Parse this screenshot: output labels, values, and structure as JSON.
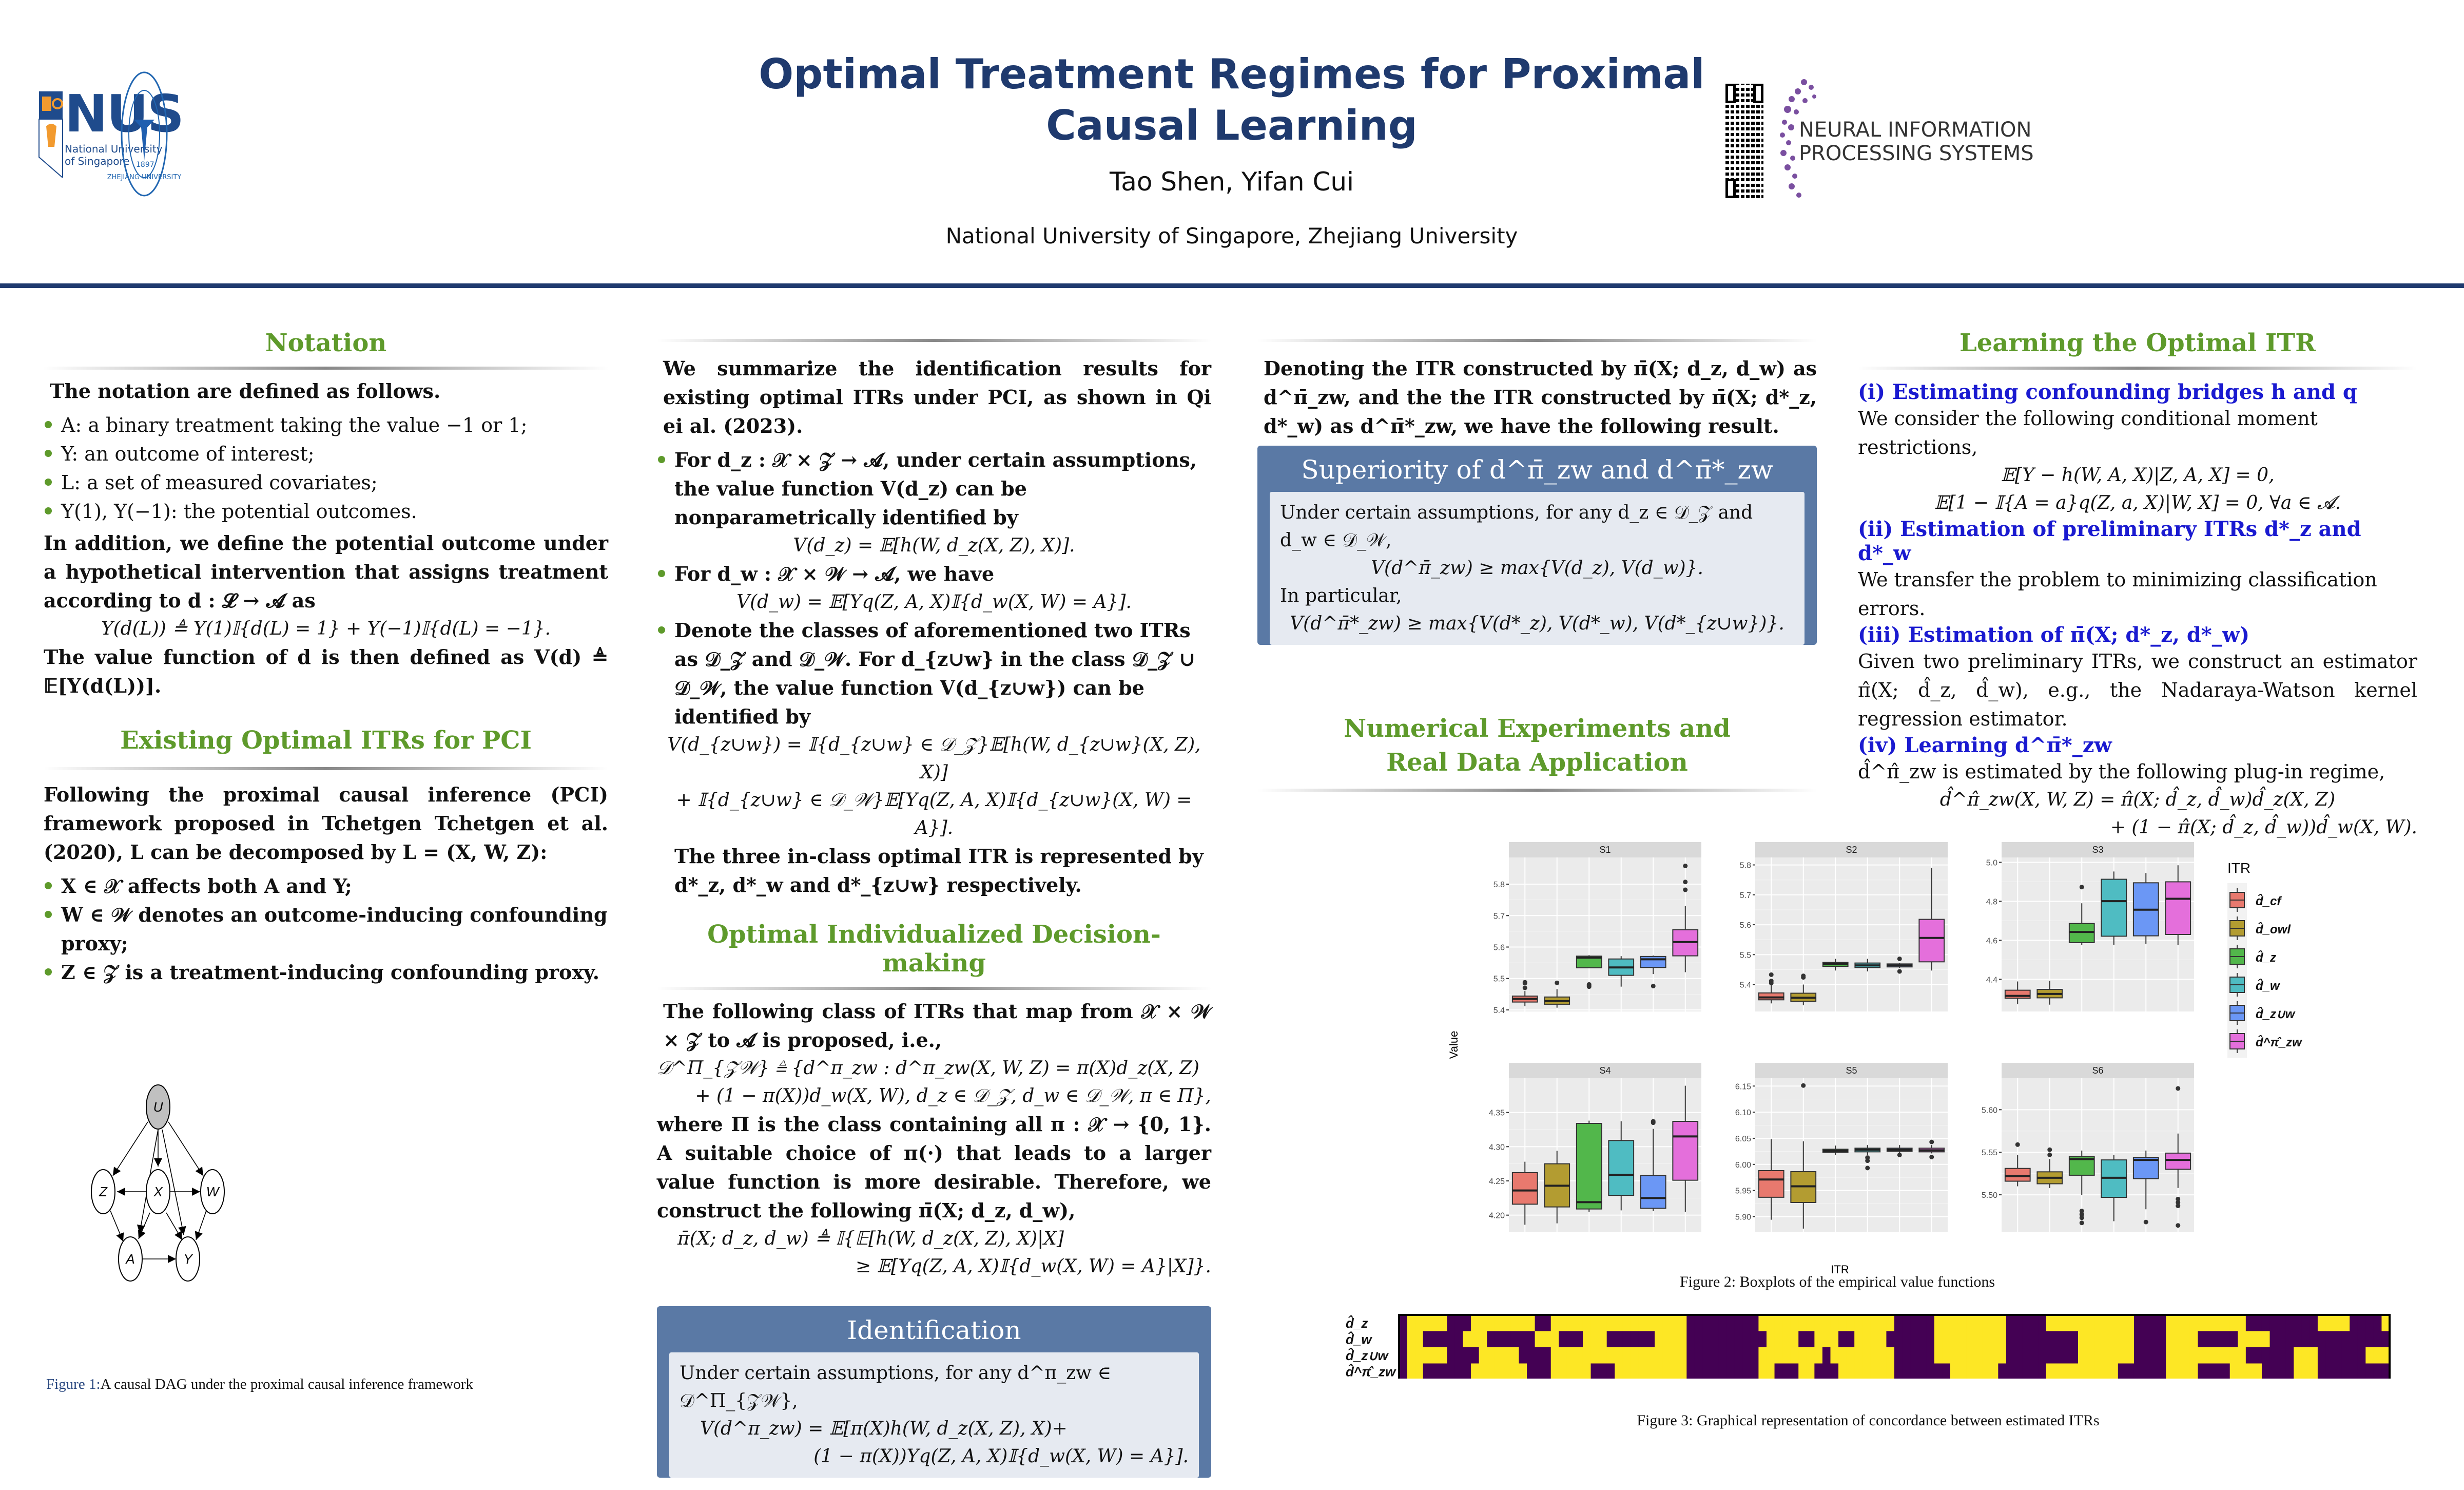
{
  "header": {
    "title_line1": "Optimal Treatment Regimes for Proximal",
    "title_line2": "Causal Learning",
    "authors": "Tao Shen, Yifan Cui",
    "affiliations": "National University of Singapore, Zhejiang University",
    "logos": {
      "nus_name": "NUS",
      "nus_sub1": "National University",
      "nus_sub2": "of Singapore",
      "zju_name": "ZHEJIANG UNIVERSITY",
      "zju_year": "1897",
      "neurips_line1": "NEURAL INFORMATION",
      "neurips_line2": "PROCESSING SYSTEMS",
      "qr_icon": "qr-code-icon"
    },
    "colors": {
      "title": "#1f3a6e",
      "section": "#5e9a2b",
      "box": "#5a79a5",
      "box_inner": "#e6eaf1",
      "subhead_blue": "#1a1ad0"
    }
  },
  "notation": {
    "title": "Notation",
    "intro": "The notation are defined as follows.",
    "bullets": [
      "A: a binary treatment taking the value −1 or 1;",
      "Y: an outcome of interest;",
      "L: a set of measured covariates;",
      "Y(1), Y(−1): the potential outcomes."
    ],
    "para1": "In addition, we define the potential outcome under a hypothetical intervention that assigns treatment according to d : 𝓛 → 𝓐 as",
    "eq1": "Y(d(L)) ≜ Y(1)𝕀{d(L) = 1} + Y(−1)𝕀{d(L) = −1}.",
    "para2": "The value function of d is then defined as V(d) ≜ 𝔼[Y(d(L))]."
  },
  "existing": {
    "title": "Existing Optimal ITRs for PCI",
    "intro": "Following the proximal causal inference (PCI) framework proposed in Tchetgen Tchetgen et al. (2020), L can be decomposed by L = (X, W, Z):",
    "bullets": [
      "X ∈ 𝒳 affects both A and Y;",
      "W ∈ 𝒲 denotes an outcome-inducing confounding proxy;",
      "Z ∈ 𝒵 is a treatment-inducing confounding proxy."
    ]
  },
  "figure1": {
    "nodes": [
      "U",
      "Z",
      "X",
      "W",
      "A",
      "Y"
    ],
    "caption_label": "Figure 1:",
    "caption_text": "A causal DAG under the proximal causal inference framework"
  },
  "col2": {
    "intro": "We summarize the identification results for existing optimal ITRs under PCI, as shown in Qi ei al. (2023).",
    "b1": "For d_z : 𝒳 × 𝒵 → 𝓐, under certain assumptions, the value function V(d_z) can be nonparametrically identified by",
    "eq_b1": "V(d_z) = 𝔼[h(W, d_z(X, Z), X)].",
    "b2": "For d_w : 𝒳 × 𝒲 → 𝓐, we have",
    "eq_b2": "V(d_w) = 𝔼[Yq(Z, A, X)𝕀{d_w(X, W) = A}].",
    "b3": "Denote the classes of aforementioned two ITRs as 𝒟_𝒵 and 𝒟_𝒲. For d_{z∪w} in the class 𝒟_𝒵 ∪ 𝒟_𝒲, the value function V(d_{z∪w}) can be identified by",
    "eq_b3_l1": "V(d_{z∪w}) = 𝕀{d_{z∪w} ∈ 𝒟_𝒵}𝔼[h(W, d_{z∪w}(X, Z), X)]",
    "eq_b3_l2": "+ 𝕀{d_{z∪w} ∈ 𝒟_𝒲}𝔼[Yq(Z, A, X)𝕀{d_{z∪w}(X, W) = A}].",
    "closing": "The three in-class optimal ITR is represented by d*_z, d*_w and d*_{z∪w} respectively."
  },
  "decision": {
    "title": "Optimal Individualized Decision-making",
    "intro": "The following class of ITRs that map from 𝒳 × 𝒲 × 𝒵 to 𝓐 is proposed, i.e.,",
    "eq_l1": "𝒟^Π_{𝒵𝒲} ≜ {d^π_zw : d^π_zw(X, W, Z) = π(X)d_z(X, Z)",
    "eq_l2": "+ (1 − π(X))d_w(X, W), d_z ∈ 𝒟_𝒵, d_w ∈ 𝒟_𝒲, π ∈ Π},",
    "para": "where Π is the class containing all π : 𝒳 → {0, 1}. A suitable choice of π(·) that leads to a larger value function is more desirable. Therefore, we construct the following π̄(X; d_z, d_w),",
    "eq2_l1": "π̄(X; d_z, d_w) ≜ 𝕀{𝔼[h(W, d_z(X, Z), X)|X]",
    "eq2_l2": "≥ 𝔼[Yq(Z, A, X)𝕀{d_w(X, W) = A}|X]}."
  },
  "identification_box": {
    "title": "Identification",
    "text": "Under certain assumptions, for any d^π_zw ∈ 𝒟^Π_{𝒵𝒲},",
    "eq_l1": "V(d^π_zw) = 𝔼[π(X)h(W, d_z(X, Z), X)+",
    "eq_l2": "(1 − π(X))Yq(Z, A, X)𝕀{d_w(X, W) = A}]."
  },
  "col3": {
    "intro": "Denoting the ITR constructed by π̄(X; d_z, d_w) as d^π̄_zw, and the the ITR constructed by π̄(X; d*_z, d*_w) as d^π̄*_zw, we have the following result."
  },
  "superiority_box": {
    "title": "Superiority of d^π̄_zw and d^π̄*_zw",
    "text1": "Under certain assumptions, for any d_z ∈ 𝒟_𝒵 and d_w ∈ 𝒟_𝒲,",
    "eq1": "V(d^π̄_zw) ≥ max{V(d_z), V(d_w)}.",
    "text2": "In particular,",
    "eq2": "V(d^π̄*_zw) ≥ max{V(d*_z), V(d*_w), V(d*_{z∪w})}."
  },
  "numerical": {
    "title_l1": "Numerical Experiments and",
    "title_l2": "Real Data Application",
    "fig2_caption": "Figure 2: Boxplots of the empirical value functions",
    "fig3_caption": "Figure 3: Graphical representation of concordance between estimated ITRs"
  },
  "learning": {
    "title": "Learning the Optimal ITR",
    "s1_head": "(i) Estimating confounding bridges h and q",
    "s1_text": "We consider the following conditional moment restrictions,",
    "s1_eq1": "𝔼[Y − h(W, A, X)|Z, A, X] = 0,",
    "s1_eq2": "𝔼[1 − 𝕀{A = a}q(Z, a, X)|W, X] = 0, ∀a ∈ 𝓐.",
    "s2_head": "(ii) Estimation of preliminary ITRs d*_z and d*_w",
    "s2_text": "We transfer the problem to minimizing classification errors.",
    "s3_head": "(iii) Estimation of π̄(X; d*_z, d*_w)",
    "s3_text": "Given two preliminary ITRs, we construct an estimator π̂(X; d̂_z, d̂_w), e.g., the Nadaraya-Watson kernel regression estimator.",
    "s4_head": "(iv) Learning d^π̄*_zw",
    "s4_text": "d̂^π̂_zw is estimated by the following plug-in regime,",
    "s4_eq1": "d̂^π̂_zw(X, W, Z) = π̂(X; d̂_z, d̂_w)d̂_z(X, Z)",
    "s4_eq2": "+ (1 − π̂(X; d̂_z, d̂_w))d̂_w(X, W)."
  },
  "chart_data": [
    {
      "type": "box",
      "title": "Boxplots of the empirical value functions",
      "xlabel": "ITR",
      "ylabel": "Value",
      "legend_title": "ITR",
      "legend_position": "right",
      "categories": [
        "d̂_cf",
        "d̂_owl",
        "d̂_z",
        "d̂_w",
        "d̂_z∪w",
        "d̂^π̂_zw"
      ],
      "colors": [
        "#e8796e",
        "#b39c31",
        "#52b74b",
        "#4fbcc2",
        "#6b97f5",
        "#e46fdb"
      ],
      "panels": [
        {
          "name": "S1",
          "ylim": [
            5.395,
            5.885
          ],
          "yticks": [
            5.4,
            5.5,
            5.6,
            5.7,
            5.8
          ],
          "boxes": [
            {
              "q1": 5.425,
              "median": 5.435,
              "q3": 5.444,
              "low": 5.412,
              "high": 5.46,
              "outliers": [
                5.47,
                5.485,
                5.488
              ]
            },
            {
              "q1": 5.418,
              "median": 5.428,
              "q3": 5.441,
              "low": 5.407,
              "high": 5.466,
              "outliers": [
                5.486
              ]
            },
            {
              "q1": 5.534,
              "median": 5.566,
              "q3": 5.571,
              "low": 5.534,
              "high": 5.574,
              "outliers": [
                5.474,
                5.478,
                5.481
              ]
            },
            {
              "q1": 5.51,
              "median": 5.535,
              "q3": 5.562,
              "low": 5.474,
              "high": 5.571,
              "outliers": []
            },
            {
              "q1": 5.535,
              "median": 5.561,
              "q3": 5.57,
              "low": 5.514,
              "high": 5.573,
              "outliers": [
                5.476
              ]
            },
            {
              "q1": 5.572,
              "median": 5.616,
              "q3": 5.655,
              "low": 5.52,
              "high": 5.73,
              "outliers": [
                5.782,
                5.807,
                5.858
              ]
            }
          ]
        },
        {
          "name": "S2",
          "ylim": [
            5.31,
            5.825
          ],
          "yticks": [
            5.4,
            5.5,
            5.6,
            5.7,
            5.8
          ],
          "boxes": [
            {
              "q1": 5.349,
              "median": 5.357,
              "q3": 5.372,
              "low": 5.337,
              "high": 5.4,
              "outliers": [
                5.405,
                5.412,
                5.433
              ]
            },
            {
              "q1": 5.344,
              "median": 5.356,
              "q3": 5.371,
              "low": 5.331,
              "high": 5.4,
              "outliers": [
                5.424,
                5.429
              ]
            },
            {
              "q1": 5.461,
              "median": 5.469,
              "q3": 5.474,
              "low": 5.447,
              "high": 5.486,
              "outliers": []
            },
            {
              "q1": 5.457,
              "median": 5.464,
              "q3": 5.472,
              "low": 5.444,
              "high": 5.486,
              "outliers": []
            },
            {
              "q1": 5.459,
              "median": 5.464,
              "q3": 5.469,
              "low": 5.455,
              "high": 5.473,
              "outliers": [
                5.444,
                5.486
              ]
            },
            {
              "q1": 5.476,
              "median": 5.556,
              "q3": 5.618,
              "low": 5.447,
              "high": 5.79,
              "outliers": []
            }
          ]
        },
        {
          "name": "S3",
          "ylim": [
            4.235,
            5.025
          ],
          "yticks": [
            4.4,
            4.6,
            4.8,
            5.0
          ],
          "boxes": [
            {
              "q1": 4.303,
              "median": 4.315,
              "q3": 4.344,
              "low": 4.272,
              "high": 4.389,
              "outliers": []
            },
            {
              "q1": 4.305,
              "median": 4.325,
              "q3": 4.348,
              "low": 4.27,
              "high": 4.393,
              "outliers": []
            },
            {
              "q1": 4.588,
              "median": 4.643,
              "q3": 4.686,
              "low": 4.575,
              "high": 4.79,
              "outliers": [
                4.873
              ]
            },
            {
              "q1": 4.621,
              "median": 4.801,
              "q3": 4.913,
              "low": 4.577,
              "high": 4.953,
              "outliers": []
            },
            {
              "q1": 4.623,
              "median": 4.757,
              "q3": 4.895,
              "low": 4.582,
              "high": 4.945,
              "outliers": []
            },
            {
              "q1": 4.63,
              "median": 4.813,
              "q3": 4.9,
              "low": 4.575,
              "high": 4.985,
              "outliers": []
            }
          ]
        },
        {
          "name": "S4",
          "ylim": [
            4.175,
            4.4
          ],
          "yticks": [
            4.2,
            4.25,
            4.3,
            4.35
          ],
          "boxes": [
            {
              "q1": 4.216,
              "median": 4.236,
              "q3": 4.262,
              "low": 4.186,
              "high": 4.278,
              "outliers": []
            },
            {
              "q1": 4.212,
              "median": 4.243,
              "q3": 4.275,
              "low": 4.188,
              "high": 4.294,
              "outliers": []
            },
            {
              "q1": 4.209,
              "median": 4.219,
              "q3": 4.334,
              "low": 4.205,
              "high": 4.338,
              "outliers": []
            },
            {
              "q1": 4.229,
              "median": 4.259,
              "q3": 4.309,
              "low": 4.207,
              "high": 4.337,
              "outliers": []
            },
            {
              "q1": 4.21,
              "median": 4.225,
              "q3": 4.258,
              "low": 4.206,
              "high": 4.326,
              "outliers": [
                4.335,
                4.337
              ]
            },
            {
              "q1": 4.251,
              "median": 4.315,
              "q3": 4.337,
              "low": 4.205,
              "high": 4.389,
              "outliers": []
            }
          ]
        },
        {
          "name": "S5",
          "ylim": [
            5.87,
            6.165
          ],
          "yticks": [
            5.9,
            5.95,
            6.0,
            6.05,
            6.1,
            6.15
          ],
          "boxes": [
            {
              "q1": 5.937,
              "median": 5.971,
              "q3": 5.988,
              "low": 5.894,
              "high": 6.048,
              "outliers": []
            },
            {
              "q1": 5.927,
              "median": 5.958,
              "q3": 5.986,
              "low": 5.877,
              "high": 6.044,
              "outliers": [
                6.151
              ]
            },
            {
              "q1": 6.023,
              "median": 6.026,
              "q3": 6.029,
              "low": 6.018,
              "high": 6.036,
              "outliers": []
            },
            {
              "q1": 6.024,
              "median": 6.028,
              "q3": 6.031,
              "low": 6.018,
              "high": 6.037,
              "outliers": [
                5.993,
                6.007,
                6.013
              ]
            },
            {
              "q1": 6.025,
              "median": 6.028,
              "q3": 6.031,
              "low": 6.021,
              "high": 6.037,
              "outliers": [
                6.018
              ]
            },
            {
              "q1": 6.024,
              "median": 6.027,
              "q3": 6.031,
              "low": 6.021,
              "high": 6.037,
              "outliers": [
                6.014,
                6.043
              ]
            }
          ]
        },
        {
          "name": "S6",
          "ylim": [
            5.456,
            5.637
          ],
          "yticks": [
            5.5,
            5.55,
            5.6
          ],
          "boxes": [
            {
              "q1": 5.516,
              "median": 5.522,
              "q3": 5.531,
              "low": 5.51,
              "high": 5.547,
              "outliers": [
                5.559
              ]
            },
            {
              "q1": 5.513,
              "median": 5.52,
              "q3": 5.527,
              "low": 5.508,
              "high": 5.542,
              "outliers": [
                5.547,
                5.553
              ]
            },
            {
              "q1": 5.523,
              "median": 5.542,
              "q3": 5.545,
              "low": 5.5,
              "high": 5.552,
              "outliers": [
                5.467,
                5.473,
                5.477,
                5.481
              ]
            },
            {
              "q1": 5.497,
              "median": 5.52,
              "q3": 5.541,
              "low": 5.469,
              "high": 5.547,
              "outliers": []
            },
            {
              "q1": 5.519,
              "median": 5.541,
              "q3": 5.544,
              "low": 5.483,
              "high": 5.552,
              "outliers": [
                5.468
              ]
            },
            {
              "q1": 5.53,
              "median": 5.541,
              "q3": 5.549,
              "low": 5.508,
              "high": 5.572,
              "outliers": [
                5.464,
                5.487,
                5.491,
                5.495,
                5.625
              ]
            }
          ]
        }
      ]
    },
    {
      "type": "heatmap",
      "title": "Graphical representation of concordance between estimated ITRs",
      "row_labels": [
        "d̂_z",
        "d̂_w",
        "d̂_z∪w",
        "d̂^π̂_zw"
      ],
      "value_colors": {
        "0": "#440154",
        "1": "#fde725"
      },
      "rows": [
        "0111110001111111100111111111111111110000000001111111111111111100000111111111000001111111111100001111111111000000000111100001",
        "0110000011100000011100011100000011110000000000111100111001111000000111111111000000000111111100001111000001111000000000000000",
        "0111110000111110000111111111111111110000000001111111101111111100000111111111000000000111111100001111111111000000111000000111",
        "0110000001111111000111110001111111110000000001100011000111111100000001111110000001111111110000001111000011110000111000000000"
      ]
    }
  ]
}
